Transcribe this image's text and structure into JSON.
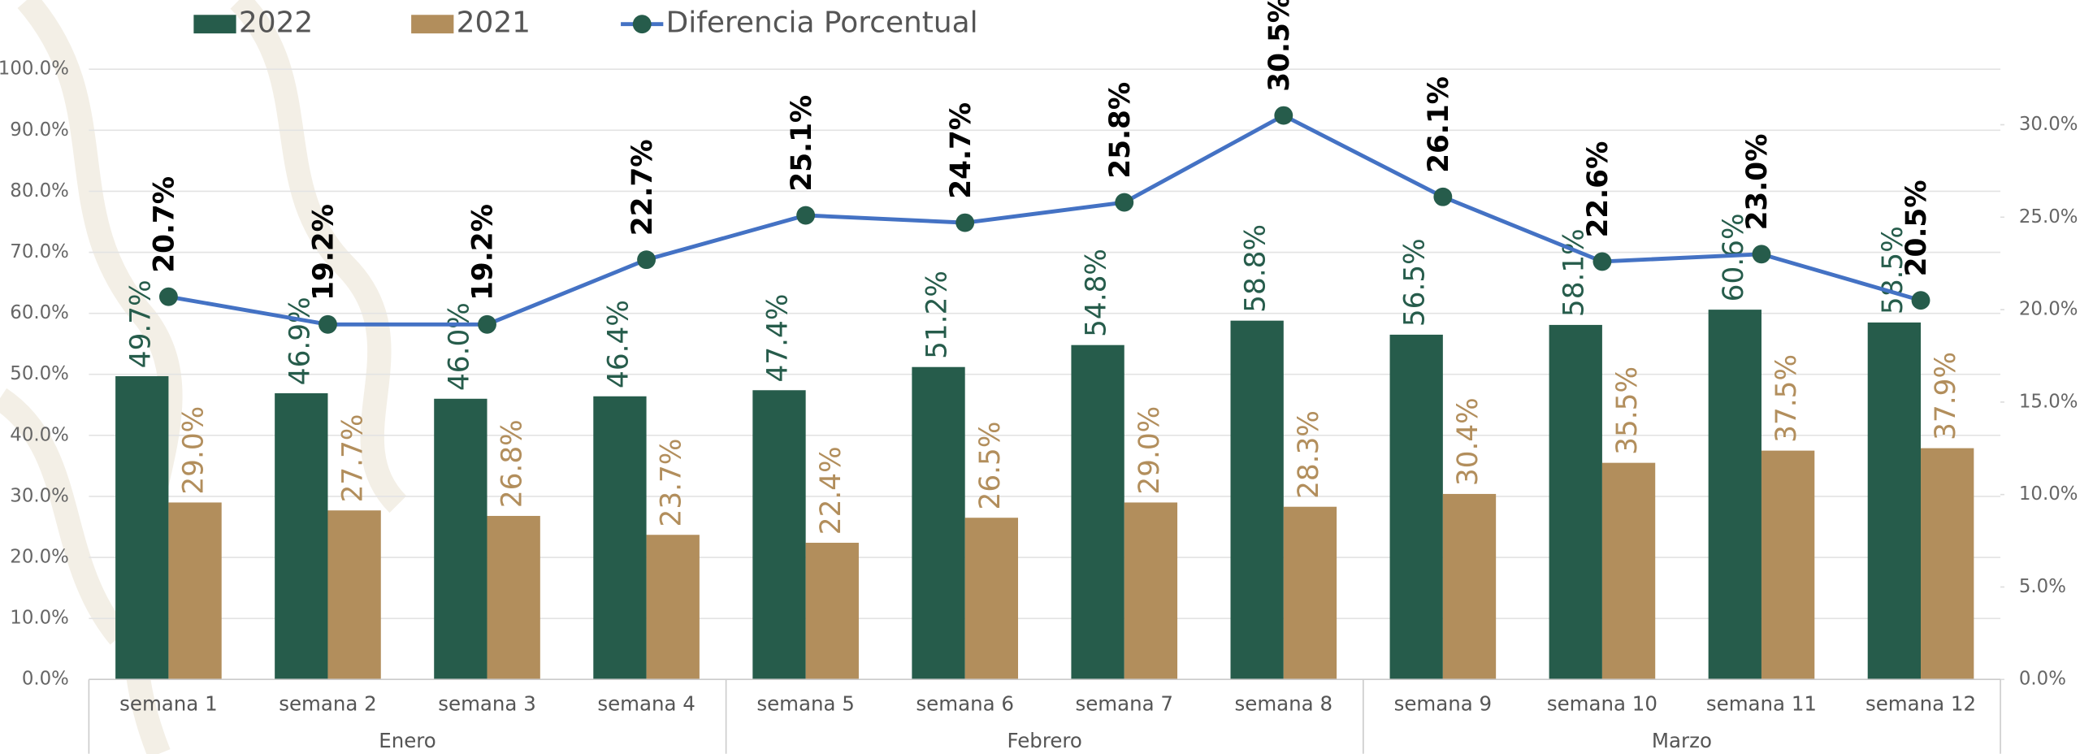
{
  "chart_data": {
    "type": "bar",
    "categories": [
      "semana  1",
      "semana 2",
      "semana 3",
      "semana  4",
      "semana  5",
      "semana  6",
      "semana  7",
      "semana  8",
      "semana  9",
      "semana  10",
      "semana  11",
      "semana  12"
    ],
    "groups": [
      "Enero",
      "Febrero",
      "Marzo"
    ],
    "series": [
      {
        "name": "2022",
        "color": "#265c4b",
        "values": [
          49.7,
          46.9,
          46.0,
          46.4,
          47.4,
          51.2,
          54.8,
          58.8,
          56.5,
          58.1,
          60.6,
          58.5
        ],
        "value_labels": [
          "49.7%",
          "46.9%",
          "46.0%",
          "46.4%",
          "47.4%",
          "51.2%",
          "54.8%",
          "58.8%",
          "56.5%",
          "58.1%",
          "60.6%",
          "58.5%"
        ]
      },
      {
        "name": "2021",
        "color": "#b28e5c",
        "values": [
          29.0,
          27.7,
          26.8,
          23.7,
          22.4,
          26.5,
          29.0,
          28.3,
          30.4,
          35.5,
          37.5,
          37.9
        ],
        "value_labels": [
          "29.0%",
          "27.7%",
          "26.8%",
          "23.7%",
          "22.4%",
          "26.5%",
          "29.0%",
          "28.3%",
          "30.4%",
          "35.5%",
          "37.5%",
          "37.9%"
        ]
      },
      {
        "name": "Diferencia Porcentual",
        "type": "line",
        "axis": "y2",
        "color": "#4472c4",
        "marker_color": "#265c4b",
        "values": [
          20.7,
          19.2,
          19.2,
          22.7,
          25.1,
          24.7,
          25.8,
          30.5,
          26.1,
          22.6,
          23.0,
          20.5
        ],
        "value_labels": [
          "20.7%",
          "19.2%",
          "19.2%",
          "22.7%",
          "25.1%",
          "24.7%",
          "25.8%",
          "30.5%",
          "26.1%",
          "22.6%",
          "23.0%",
          "20.5%"
        ]
      }
    ],
    "ylim": [
      0,
      100
    ],
    "yticks": [
      {
        "value": 0,
        "label": "0.0%"
      },
      {
        "value": 10,
        "label": "10.0%"
      },
      {
        "value": 20,
        "label": "20.0%"
      },
      {
        "value": 30,
        "label": "30.0%"
      },
      {
        "value": 40,
        "label": "40.0%"
      },
      {
        "value": 50,
        "label": "50.0%"
      },
      {
        "value": 60,
        "label": "60.0%"
      },
      {
        "value": 70,
        "label": "70.0%"
      },
      {
        "value": 80,
        "label": "80.0%"
      },
      {
        "value": 90,
        "label": "90.0%"
      },
      {
        "value": 100,
        "label": "100.0%"
      }
    ],
    "y2lim": [
      0,
      33
    ],
    "y2ticks": [
      {
        "value": 0,
        "label": "0.0%"
      },
      {
        "value": 5,
        "label": "5.0%"
      },
      {
        "value": 10,
        "label": "10.0%"
      },
      {
        "value": 15,
        "label": "15.0%"
      },
      {
        "value": 20,
        "label": "20.0%"
      },
      {
        "value": 25,
        "label": "25.0%"
      },
      {
        "value": 30,
        "label": "30.0%"
      }
    ],
    "grid": true
  }
}
